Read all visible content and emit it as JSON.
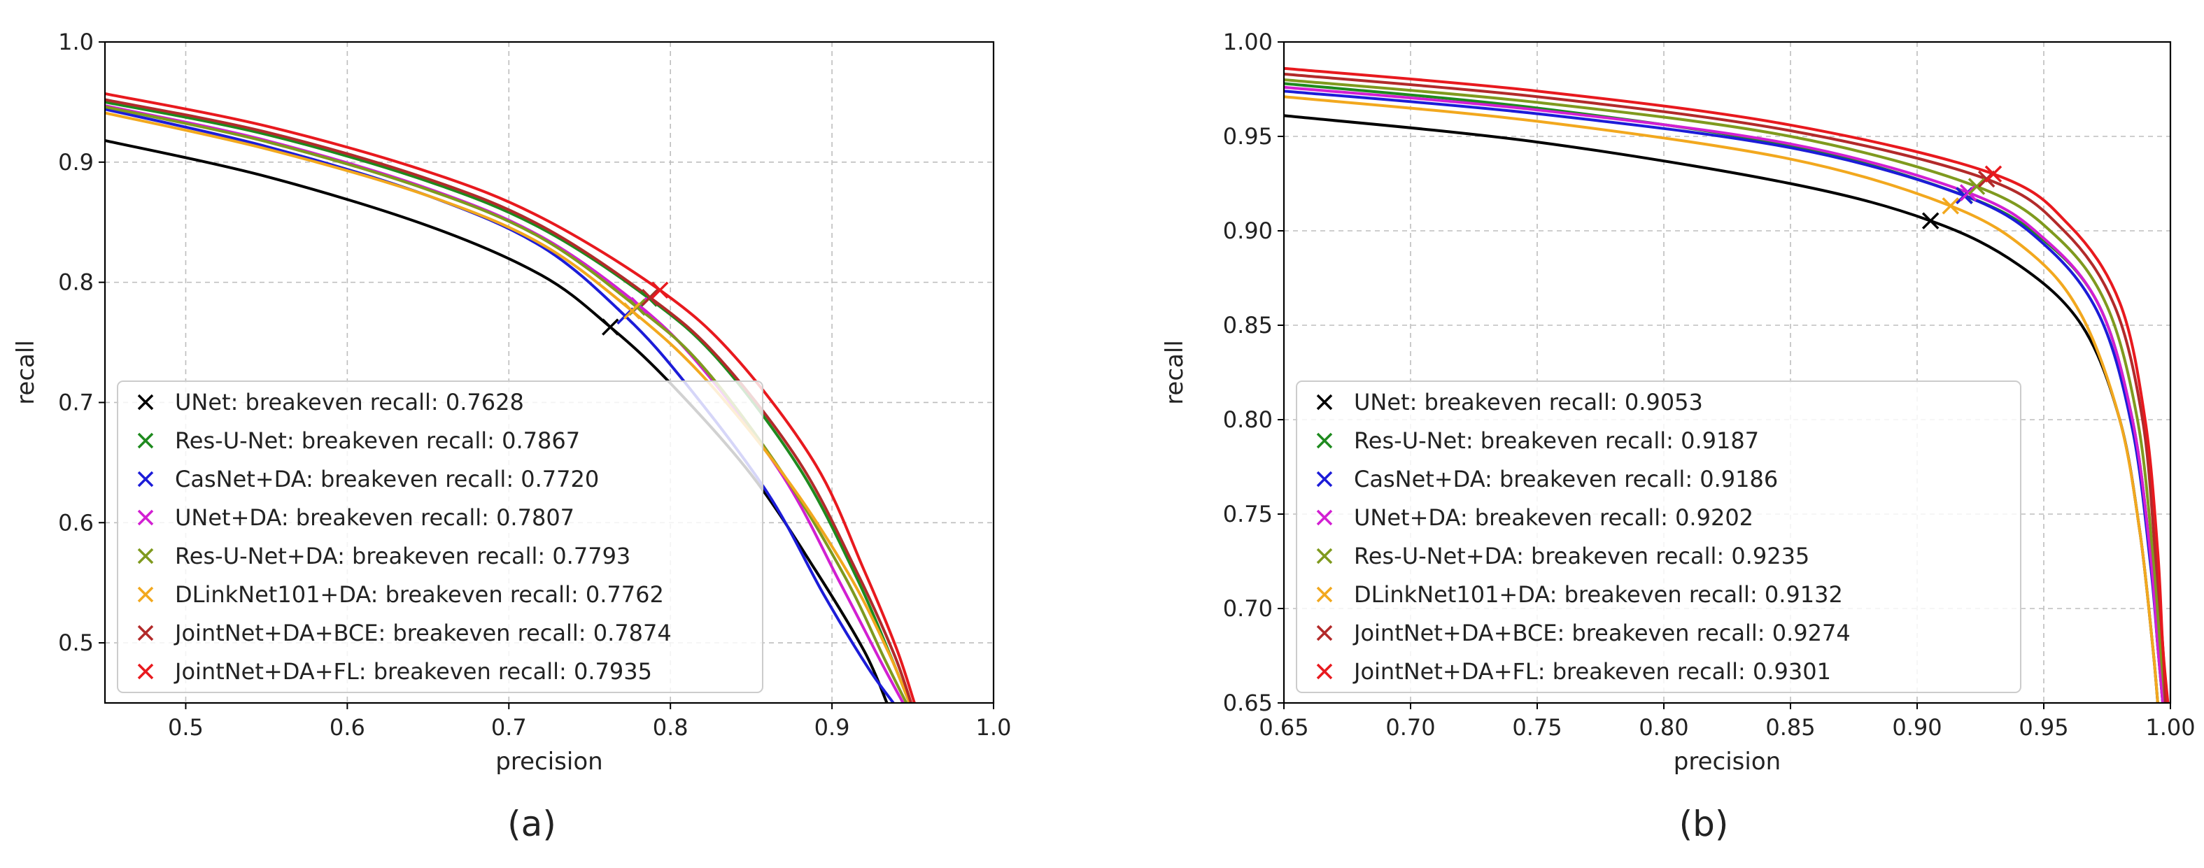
{
  "chart_data": [
    {
      "type": "line",
      "id": "a",
      "caption": "(a)",
      "xlabel": "precision",
      "ylabel": "recall",
      "xlim": [
        0.45,
        1.0
      ],
      "ylim": [
        0.45,
        1.0
      ],
      "xticks": [
        0.5,
        0.6,
        0.7,
        0.8,
        0.9,
        1.0
      ],
      "xtick_labels": [
        "0.5",
        "0.6",
        "0.7",
        "0.8",
        "0.9",
        "1.0"
      ],
      "yticks": [
        0.5,
        0.6,
        0.7,
        0.8,
        0.9,
        1.0
      ],
      "ytick_labels": [
        "0.5",
        "0.6",
        "0.7",
        "0.8",
        "0.9",
        "1.0"
      ],
      "grid": true,
      "legend_position": "lower-left",
      "series": [
        {
          "name": "UNet",
          "legend": "UNet: breakeven recall: 0.7628",
          "color": "#000000",
          "breakeven": 0.7628,
          "points": [
            [
              0.45,
              0.918
            ],
            [
              0.55,
              0.888
            ],
            [
              0.65,
              0.847
            ],
            [
              0.72,
              0.806
            ],
            [
              0.7628,
              0.7628
            ],
            [
              0.8,
              0.716
            ],
            [
              0.85,
              0.64
            ],
            [
              0.89,
              0.56
            ],
            [
              0.92,
              0.493
            ],
            [
              0.934,
              0.45
            ]
          ]
        },
        {
          "name": "Res-U-Net",
          "legend": "Res-U-Net: breakeven recall: 0.7867",
          "color": "#1e8a1e",
          "breakeven": 0.7867,
          "points": [
            [
              0.45,
              0.95
            ],
            [
              0.55,
              0.923
            ],
            [
              0.65,
              0.884
            ],
            [
              0.72,
              0.845
            ],
            [
              0.7867,
              0.7867
            ],
            [
              0.83,
              0.735
            ],
            [
              0.88,
              0.645
            ],
            [
              0.915,
              0.555
            ],
            [
              0.936,
              0.49
            ],
            [
              0.948,
              0.45
            ]
          ]
        },
        {
          "name": "CasNet+DA",
          "legend": "CasNet+DA: breakeven recall: 0.7720",
          "color": "#1c1cd8",
          "breakeven": 0.772,
          "points": [
            [
              0.45,
              0.944
            ],
            [
              0.55,
              0.913
            ],
            [
              0.65,
              0.872
            ],
            [
              0.72,
              0.83
            ],
            [
              0.772,
              0.772
            ],
            [
              0.81,
              0.715
            ],
            [
              0.86,
              0.625
            ],
            [
              0.895,
              0.54
            ],
            [
              0.922,
              0.48
            ],
            [
              0.938,
              0.45
            ]
          ]
        },
        {
          "name": "UNet+DA",
          "legend": "UNet+DA: breakeven recall: 0.7807",
          "color": "#d21fd2",
          "breakeven": 0.7807,
          "points": [
            [
              0.45,
              0.947
            ],
            [
              0.55,
              0.918
            ],
            [
              0.65,
              0.878
            ],
            [
              0.72,
              0.838
            ],
            [
              0.7807,
              0.7807
            ],
            [
              0.82,
              0.728
            ],
            [
              0.87,
              0.638
            ],
            [
              0.905,
              0.55
            ],
            [
              0.93,
              0.485
            ],
            [
              0.944,
              0.45
            ]
          ]
        },
        {
          "name": "Res-U-Net+DA",
          "legend": "Res-U-Net+DA: breakeven recall: 0.7793",
          "color": "#7f9a1e",
          "breakeven": 0.7793,
          "points": [
            [
              0.45,
              0.946
            ],
            [
              0.55,
              0.917
            ],
            [
              0.65,
              0.877
            ],
            [
              0.72,
              0.837
            ],
            [
              0.7793,
              0.7793
            ],
            [
              0.82,
              0.73
            ],
            [
              0.87,
              0.64
            ],
            [
              0.908,
              0.555
            ],
            [
              0.932,
              0.488
            ],
            [
              0.946,
              0.45
            ]
          ]
        },
        {
          "name": "DLinkNet101+DA",
          "legend": "DLinkNet101+DA: breakeven recall: 0.7762",
          "color": "#f2a81e",
          "breakeven": 0.7762,
          "points": [
            [
              0.45,
              0.941
            ],
            [
              0.55,
              0.911
            ],
            [
              0.65,
              0.872
            ],
            [
              0.72,
              0.832
            ],
            [
              0.7762,
              0.7762
            ],
            [
              0.82,
              0.722
            ],
            [
              0.87,
              0.64
            ],
            [
              0.91,
              0.558
            ],
            [
              0.935,
              0.492
            ],
            [
              0.948,
              0.45
            ]
          ]
        },
        {
          "name": "JointNet+DA+BCE",
          "legend": "JointNet+DA+BCE: breakeven recall: 0.7874",
          "color": "#b22a2a",
          "breakeven": 0.7874,
          "points": [
            [
              0.45,
              0.952
            ],
            [
              0.55,
              0.925
            ],
            [
              0.65,
              0.886
            ],
            [
              0.72,
              0.847
            ],
            [
              0.7874,
              0.7874
            ],
            [
              0.83,
              0.737
            ],
            [
              0.88,
              0.65
            ],
            [
              0.915,
              0.56
            ],
            [
              0.938,
              0.492
            ],
            [
              0.949,
              0.45
            ]
          ]
        },
        {
          "name": "JointNet+DA+FL",
          "legend": "JointNet+DA+FL: breakeven recall: 0.7935",
          "color": "#e8191e",
          "breakeven": 0.7935,
          "points": [
            [
              0.45,
              0.957
            ],
            [
              0.55,
              0.93
            ],
            [
              0.65,
              0.892
            ],
            [
              0.72,
              0.854
            ],
            [
              0.7935,
              0.7935
            ],
            [
              0.84,
              0.738
            ],
            [
              0.89,
              0.648
            ],
            [
              0.92,
              0.56
            ],
            [
              0.94,
              0.495
            ],
            [
              0.951,
              0.45
            ]
          ]
        }
      ]
    },
    {
      "type": "line",
      "id": "b",
      "caption": "(b)",
      "xlabel": "precision",
      "ylabel": "recall",
      "xlim": [
        0.65,
        1.0
      ],
      "ylim": [
        0.65,
        1.0
      ],
      "xticks": [
        0.65,
        0.7,
        0.75,
        0.8,
        0.85,
        0.9,
        0.95,
        1.0
      ],
      "xtick_labels": [
        "0.65",
        "0.70",
        "0.75",
        "0.80",
        "0.85",
        "0.90",
        "0.95",
        "1.00"
      ],
      "yticks": [
        0.65,
        0.7,
        0.75,
        0.8,
        0.85,
        0.9,
        0.95,
        1.0
      ],
      "ytick_labels": [
        "0.65",
        "0.70",
        "0.75",
        "0.80",
        "0.85",
        "0.90",
        "0.95",
        "1.00"
      ],
      "grid": true,
      "legend_position": "lower-left",
      "series": [
        {
          "name": "UNet",
          "legend": "UNet: breakeven recall: 0.9053",
          "color": "#000000",
          "breakeven": 0.9053,
          "points": [
            [
              0.65,
              0.961
            ],
            [
              0.75,
              0.947
            ],
            [
              0.85,
              0.925
            ],
            [
              0.9053,
              0.9053
            ],
            [
              0.94,
              0.882
            ],
            [
              0.965,
              0.85
            ],
            [
              0.98,
              0.8
            ],
            [
              0.988,
              0.74
            ],
            [
              0.993,
              0.68
            ],
            [
              0.995,
              0.65
            ]
          ]
        },
        {
          "name": "Res-U-Net",
          "legend": "Res-U-Net: breakeven recall: 0.9187",
          "color": "#1e8a1e",
          "breakeven": 0.9187,
          "points": [
            [
              0.65,
              0.978
            ],
            [
              0.75,
              0.965
            ],
            [
              0.85,
              0.945
            ],
            [
              0.9187,
              0.9187
            ],
            [
              0.95,
              0.895
            ],
            [
              0.972,
              0.86
            ],
            [
              0.985,
              0.8
            ],
            [
              0.992,
              0.73
            ],
            [
              0.995,
              0.68
            ],
            [
              0.997,
              0.65
            ]
          ]
        },
        {
          "name": "CasNet+DA",
          "legend": "CasNet+DA: breakeven recall: 0.9186",
          "color": "#1c1cd8",
          "breakeven": 0.9186,
          "points": [
            [
              0.65,
              0.974
            ],
            [
              0.75,
              0.962
            ],
            [
              0.85,
              0.944
            ],
            [
              0.9186,
              0.9186
            ],
            [
              0.95,
              0.893
            ],
            [
              0.972,
              0.855
            ],
            [
              0.985,
              0.795
            ],
            [
              0.992,
              0.725
            ],
            [
              0.995,
              0.68
            ],
            [
              0.997,
              0.65
            ]
          ]
        },
        {
          "name": "UNet+DA",
          "legend": "UNet+DA: breakeven recall: 0.9202",
          "color": "#d21fd2",
          "breakeven": 0.9202,
          "points": [
            [
              0.65,
              0.976
            ],
            [
              0.75,
              0.964
            ],
            [
              0.85,
              0.946
            ],
            [
              0.9202,
              0.9202
            ],
            [
              0.95,
              0.896
            ],
            [
              0.972,
              0.86
            ],
            [
              0.985,
              0.8
            ],
            [
              0.992,
              0.73
            ],
            [
              0.995,
              0.68
            ],
            [
              0.997,
              0.65
            ]
          ]
        },
        {
          "name": "Res-U-Net+DA",
          "legend": "Res-U-Net+DA: breakeven recall: 0.9235",
          "color": "#7f9a1e",
          "breakeven": 0.9235,
          "points": [
            [
              0.65,
              0.98
            ],
            [
              0.75,
              0.968
            ],
            [
              0.85,
              0.95
            ],
            [
              0.9235,
              0.9235
            ],
            [
              0.955,
              0.897
            ],
            [
              0.975,
              0.86
            ],
            [
              0.987,
              0.8
            ],
            [
              0.993,
              0.73
            ],
            [
              0.996,
              0.68
            ],
            [
              0.998,
              0.65
            ]
          ]
        },
        {
          "name": "DLinkNet101+DA",
          "legend": "DLinkNet101+DA: breakeven recall: 0.9132",
          "color": "#f2a81e",
          "breakeven": 0.9132,
          "points": [
            [
              0.65,
              0.971
            ],
            [
              0.75,
              0.958
            ],
            [
              0.85,
              0.938
            ],
            [
              0.9132,
              0.9132
            ],
            [
              0.945,
              0.888
            ],
            [
              0.965,
              0.855
            ],
            [
              0.98,
              0.8
            ],
            [
              0.988,
              0.74
            ],
            [
              0.993,
              0.68
            ],
            [
              0.995,
              0.65
            ]
          ]
        },
        {
          "name": "JointNet+DA+BCE",
          "legend": "JointNet+DA+BCE: breakeven recall: 0.9274",
          "color": "#b22a2a",
          "breakeven": 0.9274,
          "points": [
            [
              0.65,
              0.983
            ],
            [
              0.75,
              0.971
            ],
            [
              0.85,
              0.953
            ],
            [
              0.9274,
              0.9274
            ],
            [
              0.958,
              0.9
            ],
            [
              0.978,
              0.86
            ],
            [
              0.989,
              0.8
            ],
            [
              0.994,
              0.73
            ],
            [
              0.997,
              0.68
            ],
            [
              0.998,
              0.65
            ]
          ]
        },
        {
          "name": "JointNet+DA+FL",
          "legend": "JointNet+DA+FL: breakeven recall: 0.9301",
          "color": "#e8191e",
          "breakeven": 0.9301,
          "points": [
            [
              0.65,
              0.986
            ],
            [
              0.75,
              0.974
            ],
            [
              0.85,
              0.956
            ],
            [
              0.9301,
              0.9301
            ],
            [
              0.96,
              0.903
            ],
            [
              0.98,
              0.862
            ],
            [
              0.99,
              0.8
            ],
            [
              0.995,
              0.73
            ],
            [
              0.997,
              0.68
            ],
            [
              0.999,
              0.65
            ]
          ]
        }
      ]
    }
  ]
}
